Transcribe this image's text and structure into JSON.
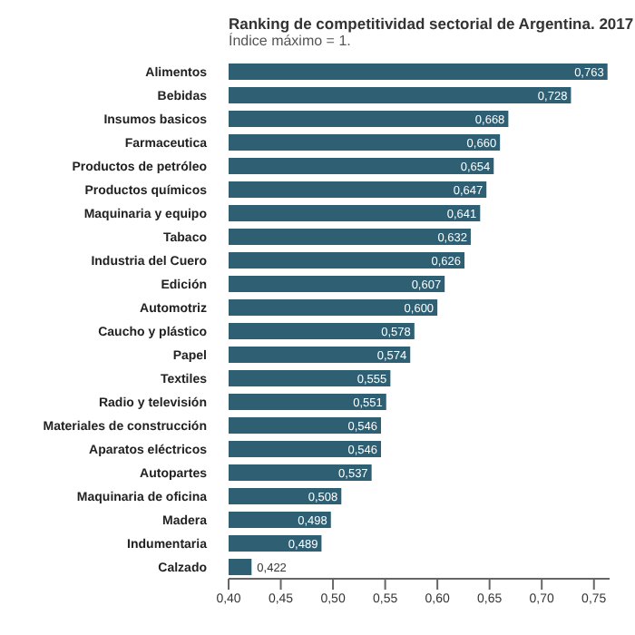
{
  "chart_data": {
    "type": "bar",
    "orientation": "horizontal",
    "title": "Ranking de competitividad sectorial de Argentina. 2017",
    "subtitle": "Índice máximo = 1.",
    "categories": [
      "Alimentos",
      "Bebidas",
      "Insumos basicos",
      "Farmaceutica",
      "Productos de petróleo",
      "Productos químicos",
      "Maquinaria y equipo",
      "Tabaco",
      "Industria del Cuero",
      "Edición",
      "Automotriz",
      "Caucho y plástico",
      "Papel",
      "Textiles",
      "Radio y televisión",
      "Materiales de construcción",
      "Aparatos eléctricos",
      "Autopartes",
      "Maquinaria de oficina",
      "Madera",
      "Indumentaria",
      "Calzado"
    ],
    "values": [
      0.763,
      0.728,
      0.668,
      0.66,
      0.654,
      0.647,
      0.641,
      0.632,
      0.626,
      0.607,
      0.6,
      0.578,
      0.574,
      0.555,
      0.551,
      0.546,
      0.546,
      0.537,
      0.508,
      0.498,
      0.489,
      0.422
    ],
    "value_labels": [
      "0,763",
      "0,728",
      "0,668",
      "0,660",
      "0,654",
      "0,647",
      "0,641",
      "0,632",
      "0,626",
      "0,607",
      "0,600",
      "0,578",
      "0,574",
      "0,555",
      "0,551",
      "0,546",
      "0,546",
      "0,537",
      "0,508",
      "0,498",
      "0,489",
      "0,422"
    ],
    "color": "#2e5f73",
    "xlim": [
      0.4,
      0.765
    ],
    "xticks": [
      {
        "value": 0.4,
        "label": "0,40"
      },
      {
        "value": 0.45,
        "label": "0,45"
      },
      {
        "value": 0.5,
        "label": "0,50"
      },
      {
        "value": 0.55,
        "label": "0,55"
      },
      {
        "value": 0.6,
        "label": "0,60"
      },
      {
        "value": 0.65,
        "label": "0,65"
      },
      {
        "value": 0.7,
        "label": "0,70"
      },
      {
        "value": 0.75,
        "label": "0,75"
      }
    ]
  }
}
